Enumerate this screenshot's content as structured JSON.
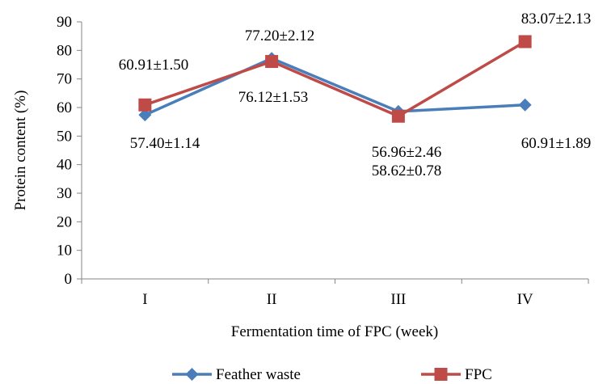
{
  "chart_data": {
    "type": "line",
    "categories": [
      "I",
      "II",
      "III",
      "IV"
    ],
    "xlabel": "Fermentation time of FPC (week)",
    "ylabel": "Protein content (%)",
    "ylim": [
      0,
      90
    ],
    "yticks": [
      "0",
      "10",
      "20",
      "30",
      "40",
      "50",
      "60",
      "70",
      "80",
      "90"
    ],
    "grid": false,
    "legend_position": "bottom",
    "series": [
      {
        "name": "Feather waste",
        "color": "#4a7ebb",
        "marker": "diamond",
        "values": [
          57.4,
          77.2,
          58.62,
          60.91
        ],
        "labels": [
          "57.40±1.14",
          "77.20±2.12",
          "58.62±0.78",
          "60.91±1.89"
        ]
      },
      {
        "name": "FPC",
        "color": "#be4b48",
        "marker": "square",
        "values": [
          60.91,
          76.12,
          56.96,
          83.07
        ],
        "labels": [
          "60.91±1.50",
          "76.12±1.53",
          "56.96±2.46",
          "83.07±2.13"
        ]
      }
    ]
  }
}
